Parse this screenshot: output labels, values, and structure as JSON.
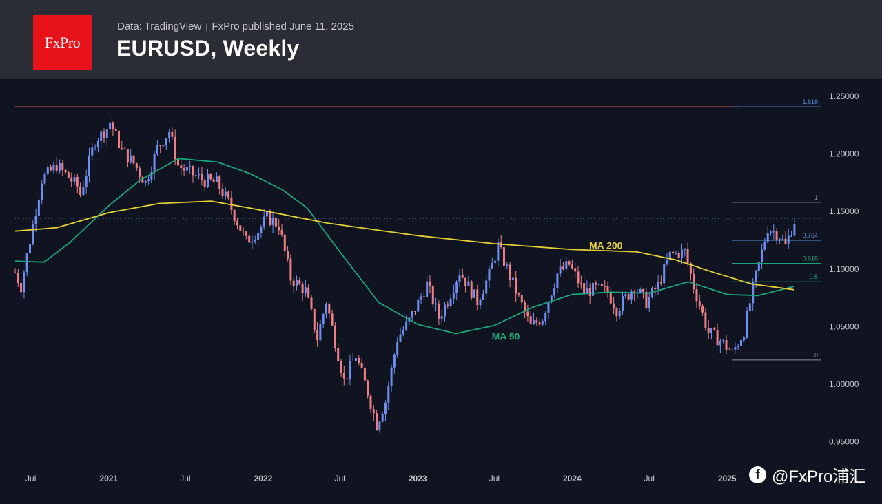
{
  "header": {
    "logo_text": "FxPro",
    "source_data": "Data: TradingView",
    "source_published": "FxPro published June 11, 2025",
    "title": "EURUSD, Weekly"
  },
  "watermark": {
    "icon": "facebook-icon",
    "text": "@FxPro浦汇"
  },
  "colors": {
    "background": "#0f1420",
    "header_bg": "#2a2d36",
    "logo_red": "#e8121a",
    "candle_up": "#6f8ff0",
    "candle_down": "#ef7f86",
    "ma200": "#e6d135",
    "ma50": "#1aa67a",
    "resistance_line": "#ef5454"
  },
  "chart_data": {
    "type": "candlestick",
    "timeframe": "Weekly",
    "symbol": "EURUSD",
    "ylim": [
      0.93,
      1.265
    ],
    "x_range": [
      "2020-05-25",
      "2025-07-15"
    ],
    "y_ticks": [
      "1.25000",
      "1.20000",
      "1.15000",
      "1.10000",
      "1.05000",
      "1.00000",
      "0.95000"
    ],
    "x_ticks": [
      {
        "label": "Jul",
        "date": "2020-07-01",
        "bold": false
      },
      {
        "label": "2021",
        "date": "2021-01-01",
        "bold": true
      },
      {
        "label": "Jul",
        "date": "2021-07-01",
        "bold": false
      },
      {
        "label": "2022",
        "date": "2022-01-01",
        "bold": true
      },
      {
        "label": "Jul",
        "date": "2022-07-01",
        "bold": false
      },
      {
        "label": "2023",
        "date": "2023-01-01",
        "bold": true
      },
      {
        "label": "Jul",
        "date": "2023-07-01",
        "bold": false
      },
      {
        "label": "2024",
        "date": "2024-01-01",
        "bold": true
      },
      {
        "label": "Jul",
        "date": "2024-07-01",
        "bold": false
      },
      {
        "label": "2025",
        "date": "2025-01-01",
        "bold": true
      },
      {
        "label": "Jul",
        "date": "2025-07-01",
        "bold": false
      }
    ],
    "close_path": [
      [
        "2020-05-25",
        1.097
      ],
      [
        "2020-06-08",
        1.085
      ],
      [
        "2020-06-29",
        1.125
      ],
      [
        "2020-07-27",
        1.178
      ],
      [
        "2020-08-31",
        1.19
      ],
      [
        "2020-10-19",
        1.172
      ],
      [
        "2020-10-26",
        1.165
      ],
      [
        "2020-11-30",
        1.212
      ],
      [
        "2020-12-28",
        1.222
      ],
      [
        "2021-01-04",
        1.228
      ],
      [
        "2021-02-01",
        1.203
      ],
      [
        "2021-03-01",
        1.192
      ],
      [
        "2021-03-29",
        1.175
      ],
      [
        "2021-04-26",
        1.205
      ],
      [
        "2021-05-24",
        1.22
      ],
      [
        "2021-06-14",
        1.19
      ],
      [
        "2021-07-05",
        1.185
      ],
      [
        "2021-08-16",
        1.177
      ],
      [
        "2021-09-13",
        1.175
      ],
      [
        "2021-10-11",
        1.158
      ],
      [
        "2021-11-22",
        1.124
      ],
      [
        "2021-12-20",
        1.133
      ],
      [
        "2022-01-10",
        1.145
      ],
      [
        "2022-02-07",
        1.138
      ],
      [
        "2022-03-07",
        1.092
      ],
      [
        "2022-04-11",
        1.081
      ],
      [
        "2022-05-09",
        1.04
      ],
      [
        "2022-05-30",
        1.072
      ],
      [
        "2022-07-11",
        1.003
      ],
      [
        "2022-08-08",
        1.025
      ],
      [
        "2022-09-05",
        0.993
      ],
      [
        "2022-09-26",
        0.965
      ],
      [
        "2022-10-17",
        0.985
      ],
      [
        "2022-11-14",
        1.04
      ],
      [
        "2022-12-12",
        1.055
      ],
      [
        "2023-01-23",
        1.087
      ],
      [
        "2023-02-20",
        1.058
      ],
      [
        "2023-03-13",
        1.073
      ],
      [
        "2023-04-10",
        1.098
      ],
      [
        "2023-05-22",
        1.072
      ],
      [
        "2023-06-19",
        1.095
      ],
      [
        "2023-07-10",
        1.12
      ],
      [
        "2023-08-14",
        1.087
      ],
      [
        "2023-09-25",
        1.05
      ],
      [
        "2023-10-23",
        1.058
      ],
      [
        "2023-11-27",
        1.096
      ],
      [
        "2023-12-25",
        1.104
      ],
      [
        "2024-01-29",
        1.08
      ],
      [
        "2024-02-26",
        1.083
      ],
      [
        "2024-03-25",
        1.08
      ],
      [
        "2024-04-15",
        1.065
      ],
      [
        "2024-05-27",
        1.085
      ],
      [
        "2024-06-24",
        1.071
      ],
      [
        "2024-07-22",
        1.086
      ],
      [
        "2024-08-19",
        1.112
      ],
      [
        "2024-09-23",
        1.115
      ],
      [
        "2024-10-14",
        1.085
      ],
      [
        "2024-11-18",
        1.045
      ],
      [
        "2024-12-16",
        1.038
      ],
      [
        "2025-01-13",
        1.027
      ],
      [
        "2025-02-10",
        1.046
      ],
      [
        "2025-03-03",
        1.083
      ],
      [
        "2025-04-07",
        1.136
      ],
      [
        "2025-05-05",
        1.129
      ],
      [
        "2025-05-19",
        1.12
      ],
      [
        "2025-06-09",
        1.142
      ]
    ],
    "ma200_path": [
      [
        "2020-05-25",
        1.133
      ],
      [
        "2020-09-01",
        1.136
      ],
      [
        "2021-01-01",
        1.149
      ],
      [
        "2021-05-01",
        1.157
      ],
      [
        "2021-09-01",
        1.159
      ],
      [
        "2021-12-01",
        1.153
      ],
      [
        "2022-06-01",
        1.14
      ],
      [
        "2023-01-01",
        1.129
      ],
      [
        "2023-07-01",
        1.122
      ],
      [
        "2024-01-01",
        1.117
      ],
      [
        "2024-06-01",
        1.115
      ],
      [
        "2024-09-01",
        1.108
      ],
      [
        "2024-12-01",
        1.097
      ],
      [
        "2025-03-01",
        1.087
      ],
      [
        "2025-06-09",
        1.082
      ]
    ],
    "ma50_path": [
      [
        "2020-05-25",
        1.107
      ],
      [
        "2020-08-01",
        1.106
      ],
      [
        "2020-10-01",
        1.123
      ],
      [
        "2021-01-01",
        1.155
      ],
      [
        "2021-03-15",
        1.177
      ],
      [
        "2021-06-15",
        1.196
      ],
      [
        "2021-09-15",
        1.193
      ],
      [
        "2021-12-01",
        1.183
      ],
      [
        "2022-02-15",
        1.169
      ],
      [
        "2022-04-15",
        1.153
      ],
      [
        "2022-07-01",
        1.115
      ],
      [
        "2022-10-01",
        1.071
      ],
      [
        "2023-01-01",
        1.052
      ],
      [
        "2023-04-01",
        1.044
      ],
      [
        "2023-07-01",
        1.051
      ],
      [
        "2023-10-01",
        1.067
      ],
      [
        "2024-01-01",
        1.078
      ],
      [
        "2024-04-01",
        1.08
      ],
      [
        "2024-07-01",
        1.079
      ],
      [
        "2024-10-01",
        1.089
      ],
      [
        "2025-01-01",
        1.078
      ],
      [
        "2025-03-15",
        1.077
      ],
      [
        "2025-06-09",
        1.085
      ]
    ],
    "ma_labels": [
      {
        "text": "MA 200",
        "date": "2024-02-10",
        "value": 1.1175,
        "color": "#e6d135"
      },
      {
        "text": "MA 50",
        "date": "2023-06-25",
        "value": 1.0385,
        "color": "#1aa67a"
      }
    ],
    "resistance_level": 1.241,
    "fibonacci": {
      "start_date": "2025-01-13",
      "levels": [
        {
          "label": "1.618",
          "value": 1.241,
          "color": "#5b8fdf"
        },
        {
          "label": "1",
          "value": 1.158,
          "color": "#8a8d96"
        },
        {
          "label": "0.764",
          "value": 1.125,
          "color": "#5b8fdf"
        },
        {
          "label": "0.618",
          "value": 1.105,
          "color": "#1aa67a"
        },
        {
          "label": "0.5",
          "value": 1.089,
          "color": "#1aa67a"
        },
        {
          "label": "0",
          "value": 1.021,
          "color": "#8a8d96"
        }
      ]
    },
    "last_price_line": 1.144
  }
}
